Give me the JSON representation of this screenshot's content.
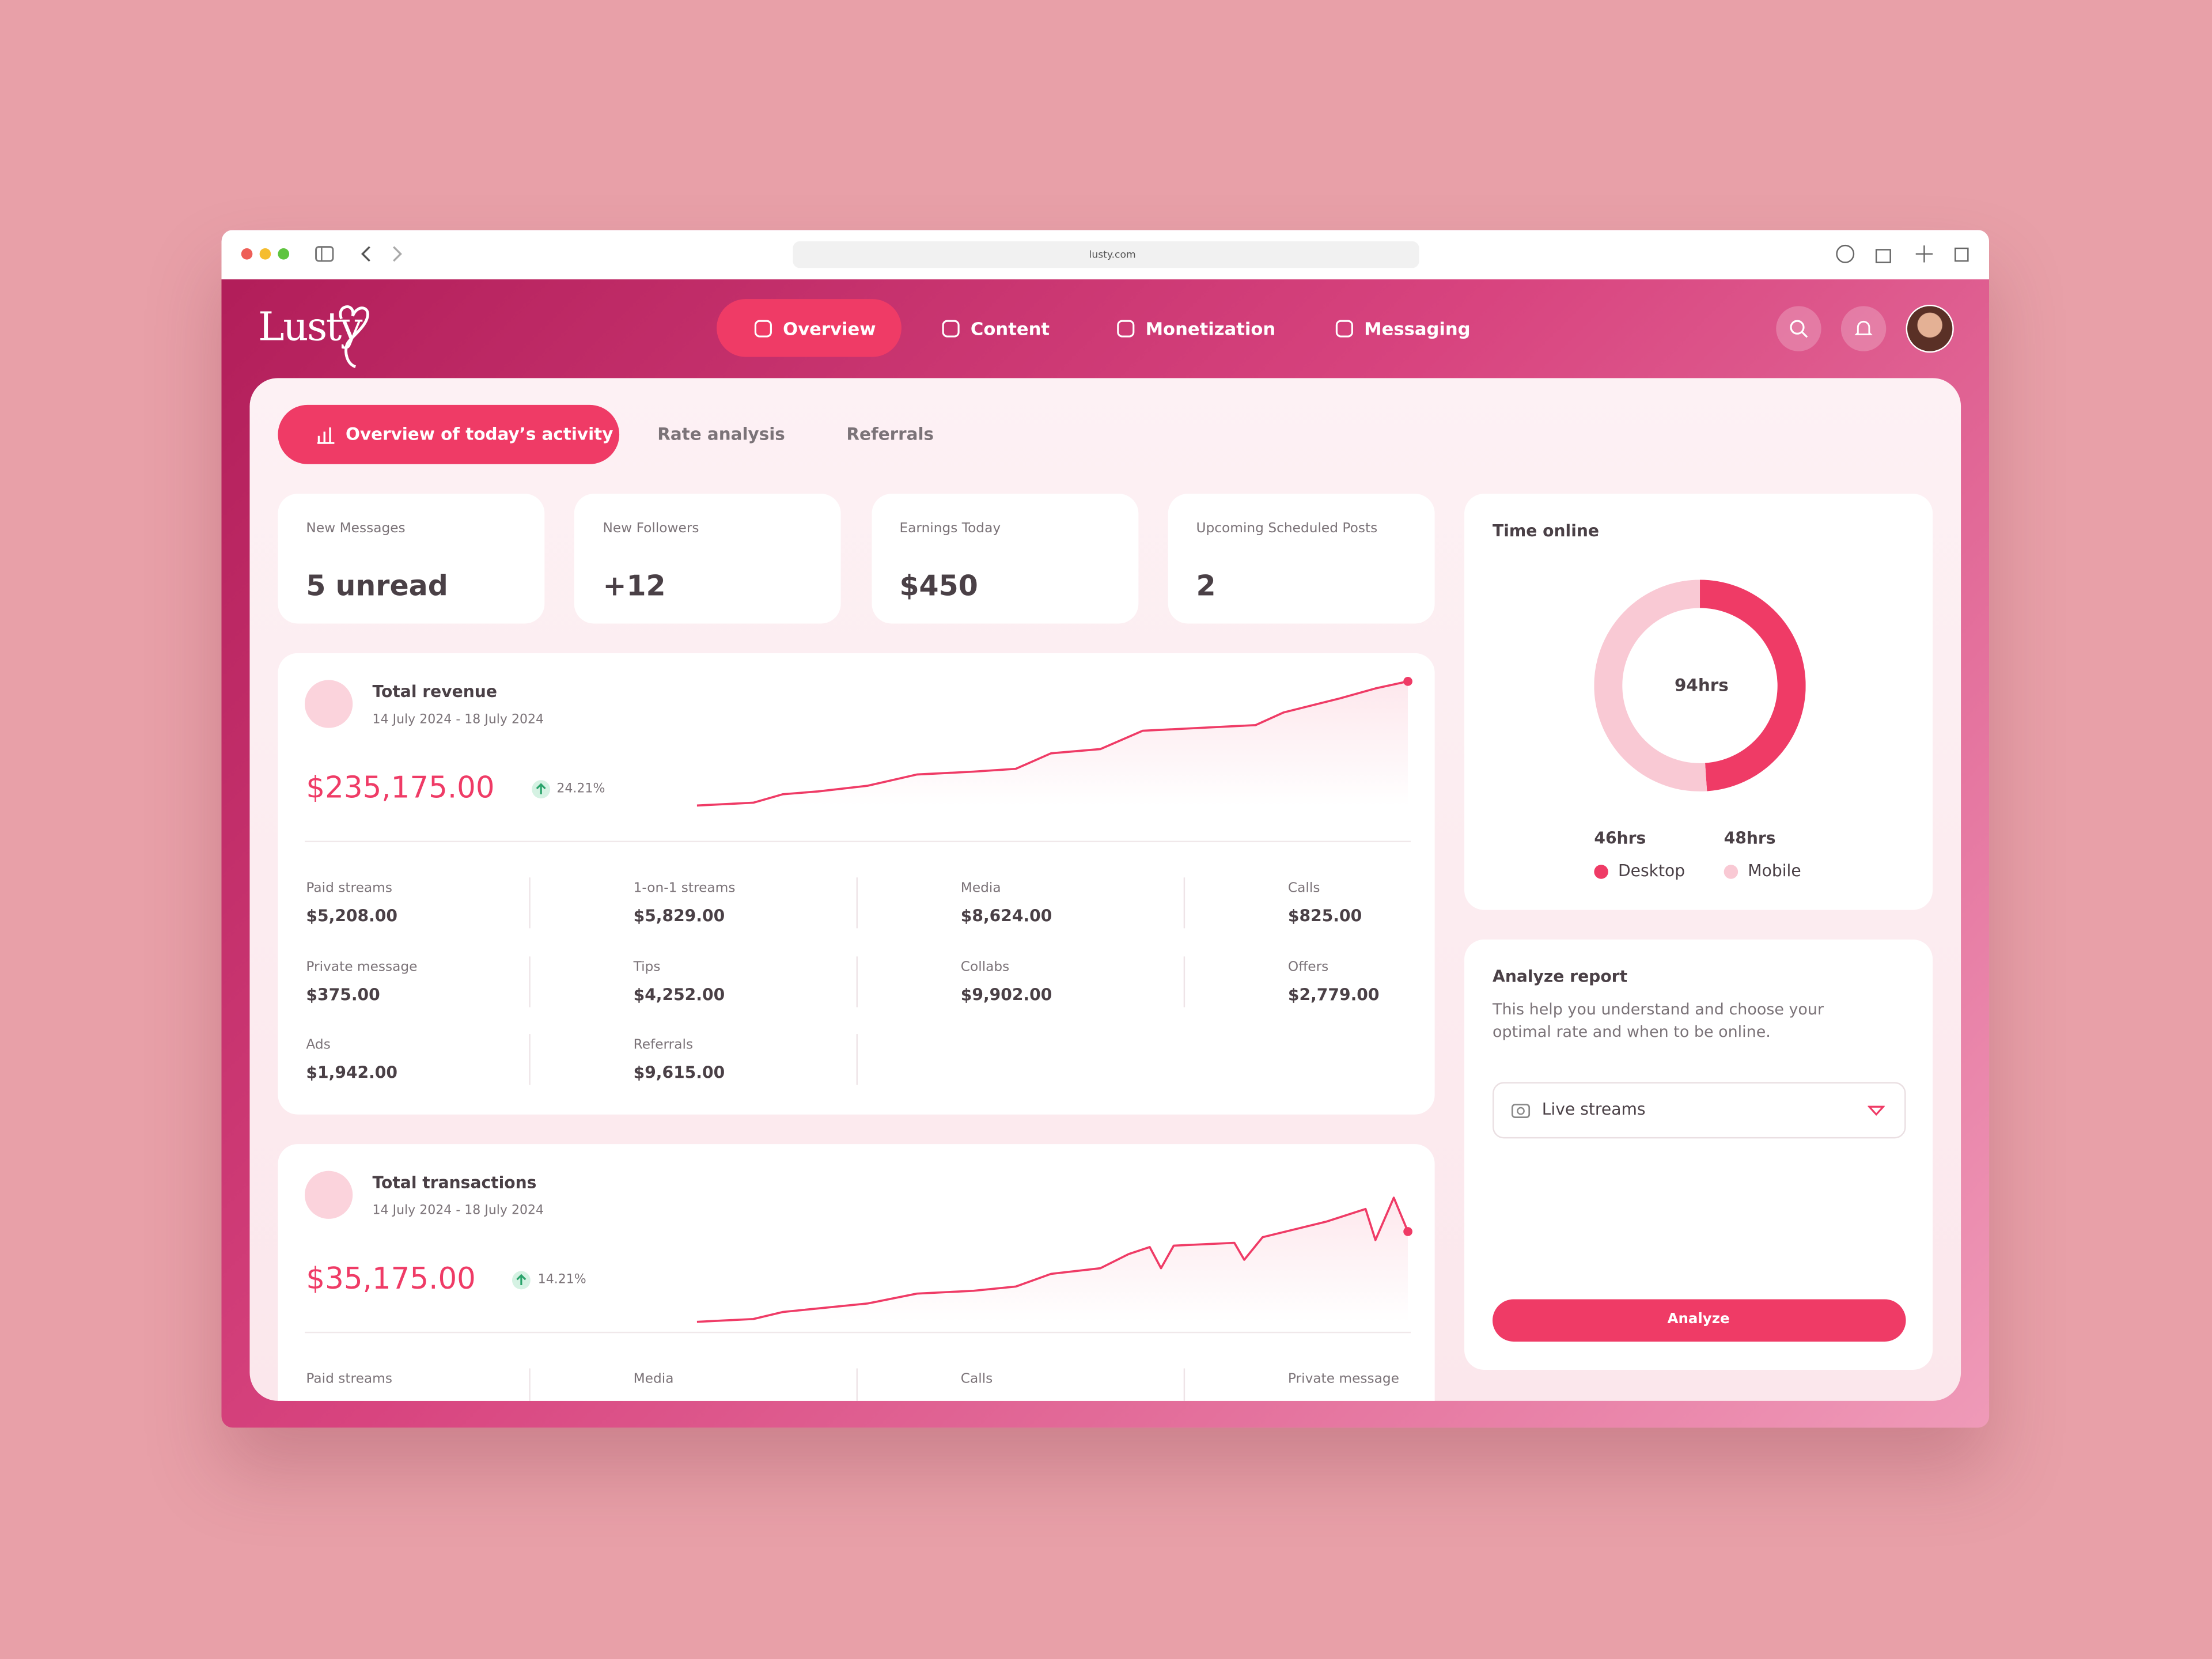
{
  "browser": {
    "url": "lusty.com"
  },
  "nav": {
    "logo": "Lusty",
    "items": [
      "Overview",
      "Content",
      "Monetization",
      "Messaging"
    ]
  },
  "tabs": [
    "Overview of today’s activity",
    "Rate analysis",
    "Referrals"
  ],
  "stats": [
    {
      "label": "New Messages",
      "value": "5 unread"
    },
    {
      "label": "New Followers",
      "value": "+12"
    },
    {
      "label": "Earnings Today",
      "value": "$450"
    },
    {
      "label": "Upcoming Scheduled Posts",
      "value": "2"
    }
  ],
  "revenue": {
    "title": "Total revenue",
    "dates": "14 July 2024 - 18 July 2024",
    "amount": "$235,175.00",
    "change": "24.21%",
    "items": [
      {
        "label": "Paid streams",
        "value": "$5,208.00"
      },
      {
        "label": "1-on-1 streams",
        "value": "$5,829.00"
      },
      {
        "label": "Media",
        "value": "$8,624.00"
      },
      {
        "label": "Calls",
        "value": "$825.00"
      },
      {
        "label": "Private message",
        "value": "$375.00"
      },
      {
        "label": "Tips",
        "value": "$4,252.00"
      },
      {
        "label": "Collabs",
        "value": "$9,902.00"
      },
      {
        "label": "Offers",
        "value": "$2,779.00"
      },
      {
        "label": "Ads",
        "value": "$1,942.00"
      },
      {
        "label": "Referrals",
        "value": "$9,615.00"
      }
    ]
  },
  "transactions": {
    "title": "Total transactions",
    "dates": "14 July 2024 - 18 July 2024",
    "amount": "$35,175.00",
    "change": "14.21%",
    "items": [
      {
        "label": "Paid streams"
      },
      {
        "label": "Media"
      },
      {
        "label": "Calls"
      },
      {
        "label": "Private message"
      }
    ]
  },
  "time_online": {
    "title": "Time online",
    "total": "94hrs",
    "legend": [
      {
        "value": "46hrs",
        "label": "Desktop"
      },
      {
        "value": "48hrs",
        "label": "Mobile"
      }
    ]
  },
  "analyze": {
    "title": "Analyze report",
    "description": "This help you understand and choose your optimal rate and when to be online.",
    "dropdown": "Live streams",
    "button": "Analyze"
  }
}
